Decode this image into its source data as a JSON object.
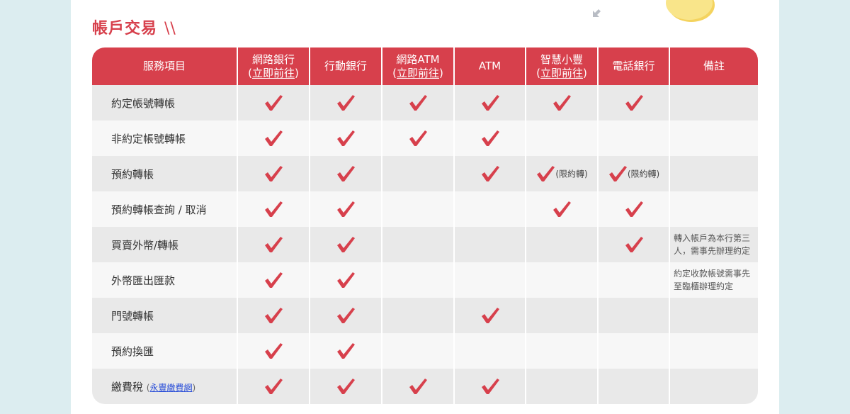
{
  "section_title": "帳戶交易",
  "title_deco": "\\\\",
  "colors": {
    "accent": "#d7404c",
    "check": "#d7404c",
    "link": "#2b4fd8"
  },
  "headers": [
    {
      "label": "服務項目"
    },
    {
      "label": "網路銀行",
      "link": "立即前往"
    },
    {
      "label": "行動銀行"
    },
    {
      "label": "網路ATM",
      "link": "立即前往"
    },
    {
      "label": "ATM"
    },
    {
      "label": "智慧小豐",
      "link": "立即前往"
    },
    {
      "label": "電話銀行"
    },
    {
      "label": "備註"
    }
  ],
  "rows": [
    {
      "item": "約定帳號轉帳",
      "cells": [
        true,
        true,
        true,
        true,
        true,
        true
      ],
      "note": ""
    },
    {
      "item": "非約定帳號轉帳",
      "cells": [
        true,
        true,
        true,
        true,
        false,
        false
      ],
      "note": ""
    },
    {
      "item": "預約轉帳",
      "cells": [
        true,
        true,
        false,
        true,
        "(限約轉)",
        "(限約轉)"
      ],
      "note": ""
    },
    {
      "item": "預約轉帳查詢 / 取消",
      "cells": [
        true,
        true,
        false,
        false,
        true,
        true
      ],
      "note": ""
    },
    {
      "item": "買賣外幣/轉帳",
      "cells": [
        true,
        true,
        false,
        false,
        false,
        true
      ],
      "note": "轉入帳戶為本行第三人，需事先辦理約定"
    },
    {
      "item": "外幣匯出匯款",
      "cells": [
        true,
        true,
        false,
        false,
        false,
        false
      ],
      "note": "約定收款帳號需事先至臨櫃辦理約定"
    },
    {
      "item": "門號轉帳",
      "cells": [
        true,
        true,
        false,
        true,
        false,
        false
      ],
      "note": ""
    },
    {
      "item": "預約換匯",
      "cells": [
        true,
        true,
        false,
        false,
        false,
        false
      ],
      "note": ""
    },
    {
      "item": "繳費稅",
      "sub_link": "永豐繳費網",
      "cells": [
        true,
        true,
        true,
        true,
        false,
        false
      ],
      "note": ""
    }
  ]
}
